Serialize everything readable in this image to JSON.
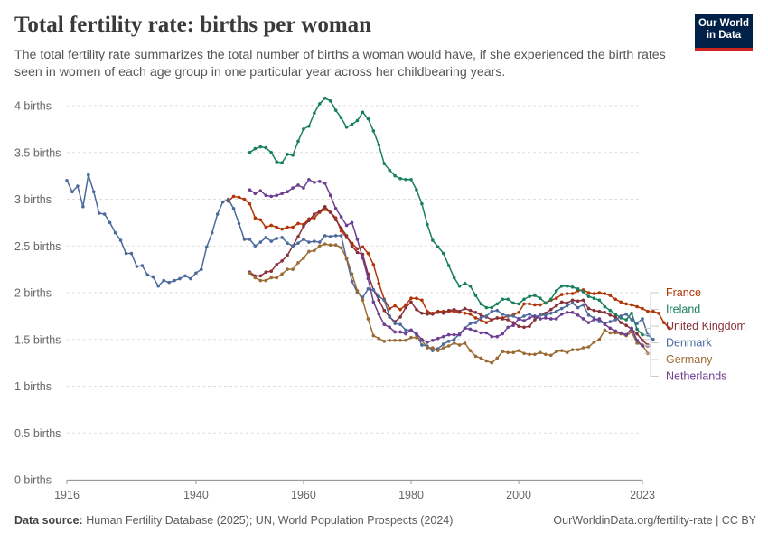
{
  "header": {
    "title": "Total fertility rate: births per woman",
    "subtitle": "The total fertility rate summarizes the total number of births a woman would have, if she experienced the birth rates seen in women of each age group in one particular year across her childbearing years.",
    "logo_line1": "Our World",
    "logo_line2": "in Data"
  },
  "footer": {
    "source_label": "Data source:",
    "source_text": "Human Fertility Database (2025); UN, World Population Prospects (2024)",
    "url_text": "OurWorldinData.org/fertility-rate | CC BY"
  },
  "chart_data": {
    "type": "line",
    "title": "Total fertility rate: births per woman",
    "xlabel": "",
    "ylabel": "",
    "xlim": [
      1916,
      2023
    ],
    "ylim": [
      0,
      4
    ],
    "x_ticks": [
      {
        "value": 1916,
        "label": "1916"
      },
      {
        "value": 1940,
        "label": "1940"
      },
      {
        "value": 1960,
        "label": "1960"
      },
      {
        "value": 1980,
        "label": "1980"
      },
      {
        "value": 2000,
        "label": "2000"
      },
      {
        "value": 2023,
        "label": "2023"
      }
    ],
    "y_ticks": [
      {
        "value": 0,
        "label": "0 births"
      },
      {
        "value": 0.5,
        "label": "0.5 births"
      },
      {
        "value": 1,
        "label": "1 births"
      },
      {
        "value": 1.5,
        "label": "1.5 births"
      },
      {
        "value": 2,
        "label": "2 births"
      },
      {
        "value": 2.5,
        "label": "2.5 births"
      },
      {
        "value": 3,
        "label": "3 births"
      },
      {
        "value": 3.5,
        "label": "3.5 births"
      },
      {
        "value": 4,
        "label": "4 births"
      }
    ],
    "grid": "horizontal dashed",
    "legend_position": "right",
    "series": [
      {
        "name": "France",
        "color": "#b13507",
        "x_start": 1946,
        "values": [
          2.98,
          3.03,
          3.02,
          3.0,
          2.95,
          2.8,
          2.78,
          2.7,
          2.72,
          2.7,
          2.68,
          2.7,
          2.7,
          2.74,
          2.73,
          2.79,
          2.8,
          2.86,
          2.89,
          2.86,
          2.8,
          2.66,
          2.59,
          2.53,
          2.47,
          2.49,
          2.42,
          2.3,
          2.1,
          1.93,
          1.83,
          1.86,
          1.82,
          1.87,
          1.94,
          1.94,
          1.92,
          1.8,
          1.78,
          1.8,
          1.8,
          1.8,
          1.8,
          1.79,
          1.78,
          1.77,
          1.73,
          1.71,
          1.68,
          1.71,
          1.73,
          1.73,
          1.75,
          1.76,
          1.79,
          1.88,
          1.88,
          1.87,
          1.87,
          1.89,
          1.92,
          1.94,
          1.98,
          1.99,
          1.99,
          2.02,
          2.03,
          2.0,
          1.99,
          2.0,
          1.99,
          1.97,
          1.93,
          1.9,
          1.88,
          1.87,
          1.85,
          1.83,
          1.8,
          1.8,
          1.78,
          1.68,
          1.62
        ]
      },
      {
        "name": "Ireland",
        "color": "#18805c",
        "x_start": 1950,
        "values": [
          3.5,
          3.54,
          3.56,
          3.55,
          3.5,
          3.4,
          3.39,
          3.48,
          3.47,
          3.62,
          3.75,
          3.78,
          3.92,
          4.02,
          4.08,
          4.05,
          3.95,
          3.87,
          3.77,
          3.8,
          3.84,
          3.93,
          3.86,
          3.73,
          3.58,
          3.38,
          3.31,
          3.25,
          3.22,
          3.21,
          3.21,
          3.1,
          2.95,
          2.73,
          2.56,
          2.49,
          2.42,
          2.29,
          2.16,
          2.07,
          2.1,
          2.07,
          1.97,
          1.88,
          1.84,
          1.84,
          1.88,
          1.93,
          1.93,
          1.89,
          1.88,
          1.93,
          1.96,
          1.97,
          1.94,
          1.89,
          1.93,
          2.02,
          2.07,
          2.07,
          2.06,
          2.04,
          2.01,
          1.96,
          1.94,
          1.92,
          1.85,
          1.81,
          1.77,
          1.73,
          1.71,
          1.78,
          1.61,
          1.55,
          1.55
        ]
      },
      {
        "name": "United Kingdom",
        "color": "#883039",
        "x_start": 1950,
        "values": [
          2.22,
          2.18,
          2.18,
          2.22,
          2.23,
          2.3,
          2.34,
          2.4,
          2.5,
          2.6,
          2.71,
          2.77,
          2.84,
          2.87,
          2.92,
          2.86,
          2.78,
          2.69,
          2.61,
          2.5,
          2.43,
          2.41,
          2.2,
          2.03,
          1.92,
          1.81,
          1.74,
          1.69,
          1.74,
          1.84,
          1.9,
          1.82,
          1.78,
          1.77,
          1.77,
          1.79,
          1.78,
          1.81,
          1.82,
          1.8,
          1.83,
          1.81,
          1.79,
          1.76,
          1.74,
          1.71,
          1.73,
          1.72,
          1.71,
          1.68,
          1.64,
          1.63,
          1.64,
          1.71,
          1.76,
          1.78,
          1.82,
          1.86,
          1.9,
          1.89,
          1.92,
          1.91,
          1.92,
          1.83,
          1.81,
          1.8,
          1.79,
          1.76,
          1.74,
          1.68,
          1.65,
          1.61,
          1.56,
          1.49,
          1.44
        ]
      },
      {
        "name": "Denmark",
        "color": "#4c6a9c",
        "x_start": 1916,
        "values": [
          3.2,
          3.08,
          3.14,
          2.92,
          3.26,
          3.08,
          2.85,
          2.84,
          2.75,
          2.64,
          2.56,
          2.42,
          2.42,
          2.28,
          2.29,
          2.19,
          2.17,
          2.07,
          2.13,
          2.11,
          2.13,
          2.15,
          2.18,
          2.15,
          2.21,
          2.25,
          2.49,
          2.64,
          2.84,
          2.97,
          3.0,
          2.9,
          2.74,
          2.57,
          2.57,
          2.5,
          2.54,
          2.59,
          2.55,
          2.58,
          2.59,
          2.53,
          2.5,
          2.53,
          2.57,
          2.54,
          2.55,
          2.54,
          2.61,
          2.6,
          2.61,
          2.61,
          2.36,
          2.12,
          2.0,
          1.95,
          2.04,
          2.03,
          1.96,
          1.92,
          1.75,
          1.67,
          1.66,
          1.6,
          1.6,
          1.55,
          1.44,
          1.43,
          1.38,
          1.4,
          1.45,
          1.48,
          1.5,
          1.56,
          1.62,
          1.67,
          1.68,
          1.73,
          1.75,
          1.8,
          1.81,
          1.77,
          1.75,
          1.75,
          1.72,
          1.75,
          1.77,
          1.74,
          1.76,
          1.76,
          1.78,
          1.8,
          1.83,
          1.86,
          1.89,
          1.84,
          1.87,
          1.76,
          1.73,
          1.69,
          1.67,
          1.69,
          1.71,
          1.75,
          1.77,
          1.71,
          1.67,
          1.72,
          1.55,
          1.5
        ]
      },
      {
        "name": "Germany",
        "color": "#9a6b34",
        "x_start": 1950,
        "values": [
          2.21,
          2.16,
          2.13,
          2.13,
          2.16,
          2.16,
          2.2,
          2.25,
          2.25,
          2.32,
          2.37,
          2.44,
          2.45,
          2.5,
          2.52,
          2.51,
          2.51,
          2.48,
          2.37,
          2.2,
          2.02,
          1.92,
          1.72,
          1.54,
          1.51,
          1.48,
          1.49,
          1.49,
          1.49,
          1.49,
          1.52,
          1.52,
          1.49,
          1.41,
          1.41,
          1.38,
          1.41,
          1.43,
          1.46,
          1.44,
          1.46,
          1.38,
          1.32,
          1.3,
          1.27,
          1.25,
          1.3,
          1.37,
          1.36,
          1.36,
          1.38,
          1.35,
          1.34,
          1.34,
          1.36,
          1.34,
          1.33,
          1.37,
          1.38,
          1.36,
          1.39,
          1.39,
          1.41,
          1.42,
          1.47,
          1.5,
          1.6,
          1.57,
          1.57,
          1.56,
          1.54,
          1.58,
          1.46,
          1.44,
          1.35
        ]
      },
      {
        "name": "Netherlands",
        "color": "#6d3e91",
        "x_start": 1950,
        "values": [
          3.1,
          3.06,
          3.09,
          3.04,
          3.03,
          3.04,
          3.06,
          3.08,
          3.12,
          3.15,
          3.12,
          3.21,
          3.18,
          3.19,
          3.17,
          3.04,
          2.9,
          2.81,
          2.72,
          2.75,
          2.57,
          2.37,
          2.15,
          1.9,
          1.77,
          1.66,
          1.63,
          1.58,
          1.58,
          1.56,
          1.6,
          1.56,
          1.5,
          1.47,
          1.49,
          1.51,
          1.53,
          1.55,
          1.55,
          1.55,
          1.62,
          1.61,
          1.59,
          1.57,
          1.57,
          1.53,
          1.53,
          1.56,
          1.63,
          1.65,
          1.72,
          1.7,
          1.73,
          1.75,
          1.72,
          1.73,
          1.72,
          1.72,
          1.77,
          1.79,
          1.79,
          1.76,
          1.72,
          1.68,
          1.71,
          1.72,
          1.66,
          1.62,
          1.59,
          1.57,
          1.55,
          1.62,
          1.49,
          1.43,
          1.43
        ]
      }
    ]
  }
}
